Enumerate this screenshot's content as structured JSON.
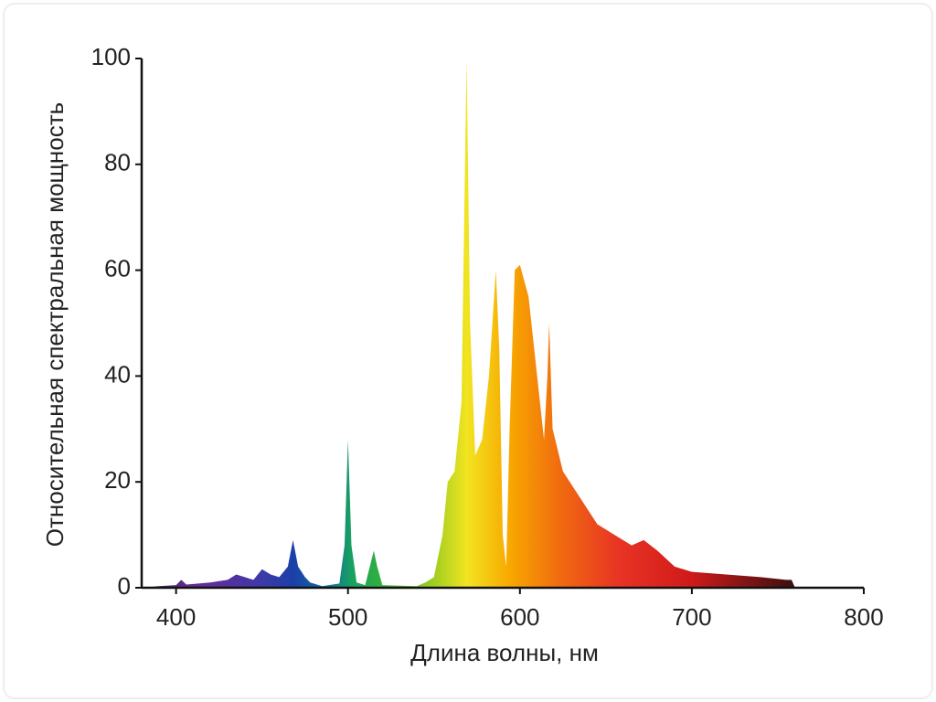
{
  "chart_data": {
    "type": "area",
    "xlabel": "Длина волны, нм",
    "ylabel": "Относительная спектральная мощность",
    "x": [
      380,
      390,
      400,
      403,
      406,
      420,
      430,
      435,
      440,
      445,
      450,
      455,
      460,
      465,
      468,
      471,
      475,
      478,
      485,
      495,
      498,
      500,
      502,
      505,
      510,
      515,
      517,
      520,
      540,
      545,
      550,
      555,
      558,
      562,
      566,
      569,
      571,
      574,
      578,
      582,
      586,
      588,
      590,
      592,
      594,
      597,
      600,
      605,
      610,
      614,
      616,
      617,
      619,
      625,
      635,
      645,
      655,
      665,
      672,
      680,
      690,
      700,
      720,
      740,
      755,
      758,
      760
    ],
    "values": [
      0,
      0.3,
      0.5,
      1.5,
      0.6,
      1,
      1.5,
      2.5,
      2,
      1.5,
      3.5,
      2.5,
      2,
      4,
      9,
      4,
      2,
      1,
      0.3,
      0.8,
      8,
      28,
      8,
      1,
      0.5,
      7,
      4,
      0.5,
      0.3,
      1,
      2,
      10,
      20,
      22,
      35,
      100,
      50,
      25,
      28,
      40,
      60,
      45,
      10,
      4,
      30,
      60,
      61,
      55,
      40,
      28,
      40,
      50,
      30,
      22,
      17,
      12,
      10,
      8,
      9,
      7,
      4,
      3,
      2.5,
      2,
      1.5,
      1.5,
      0
    ],
    "xlim": [
      380,
      800
    ],
    "xticks": [
      400,
      500,
      600,
      700,
      800
    ],
    "ylim": [
      0,
      100
    ],
    "yticks": [
      0,
      20,
      40,
      60,
      80,
      100
    ],
    "grid": false
  }
}
